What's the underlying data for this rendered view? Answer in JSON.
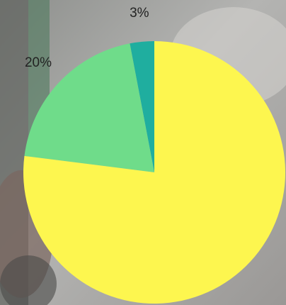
{
  "chart_data": {
    "type": "pie",
    "values": [
      3,
      20,
      77
    ],
    "value_labels": [
      "3%",
      "20%",
      null
    ],
    "colors": [
      "#1fae9f",
      "#6fdc8a",
      "#fdf64f"
    ]
  }
}
